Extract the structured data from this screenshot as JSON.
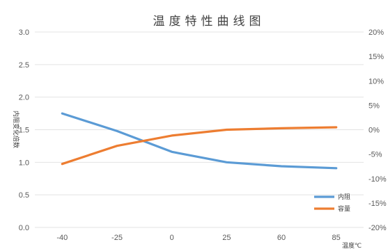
{
  "chart_data": {
    "type": "line",
    "title": "温度特性曲线图",
    "xlabel": "温度℃",
    "ylabel": "内阻变化倍数",
    "y2label": "",
    "categories": [
      "-40",
      "-25",
      "0",
      "25",
      "60",
      "85"
    ],
    "ylim": [
      0,
      3.0
    ],
    "y_ticks": [
      "0.0",
      "0.5",
      "1.0",
      "1.5",
      "2.0",
      "2.5",
      "3.0"
    ],
    "y2lim": [
      -20,
      20
    ],
    "y2_ticks": [
      "-20%",
      "-15%",
      "-10%",
      "-5%",
      "0%",
      "5%",
      "10%",
      "15%",
      "20%"
    ],
    "grid": true,
    "legend_position": "bottom-right",
    "series": [
      {
        "name": "内阻",
        "axis": "left",
        "color": "#5b9bd5",
        "values": [
          1.75,
          1.48,
          1.16,
          1.0,
          0.94,
          0.91
        ]
      },
      {
        "name": "容量",
        "axis": "right",
        "color": "#ed7d31",
        "values": [
          -7.0,
          -3.3,
          -1.2,
          0.0,
          0.3,
          0.5
        ]
      }
    ]
  }
}
